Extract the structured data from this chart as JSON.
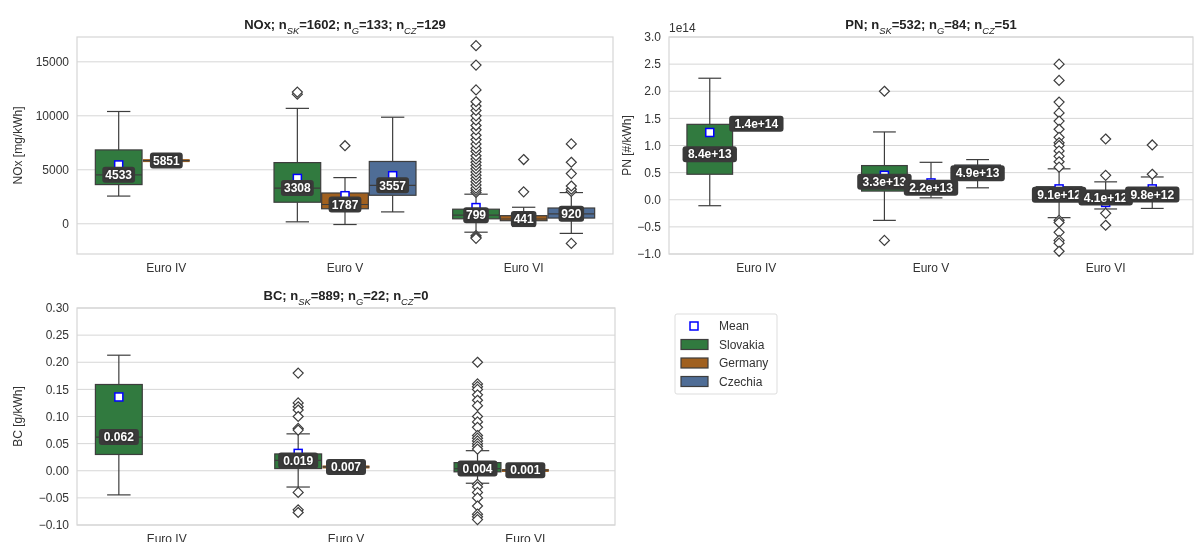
{
  "chart_data": [
    {
      "type": "box",
      "title": "NOx; n$_{SK}$=1602; n$_{G}$=133; n$_{CZ}$=129",
      "ylabel": "NOx [mg/kWh]",
      "categories": [
        "Euro IV",
        "Euro V",
        "Euro VI"
      ],
      "ylim": [
        -2800,
        17300
      ],
      "yticks": [
        0,
        5000,
        10000,
        15000
      ],
      "grid": "y",
      "marker": "square",
      "series": [
        {
          "color": "#317a3f",
          "value_labels": [
            "4533",
            "3308",
            "799"
          ],
          "boxes": [
            {
              "low": 2565,
              "q1": 3630,
              "median": 4533,
              "q3": 6840,
              "high": 10400,
              "mean": 5450
            },
            {
              "low": 180,
              "q1": 1995,
              "median": 3308,
              "q3": 5665,
              "high": 10690,
              "mean": 4200,
              "outliers": [
                12000,
                12200
              ]
            },
            {
              "low": -780,
              "q1": 460,
              "median": 799,
              "q3": 1350,
              "high": 2740,
              "mean": 1500,
              "outliers": [
                2900,
                3100,
                3300,
                3600,
                3900,
                4200,
                4500,
                4800,
                5100,
                5400,
                5700,
                6000,
                6300,
                6700,
                7000,
                7400,
                7800,
                8200,
                8700,
                9100,
                9600,
                10000,
                10500,
                10900,
                11300,
                12400,
                14700,
                16500,
                -1100,
                -1250,
                -1350
              ]
            }
          ]
        },
        {
          "color": "#a0601f",
          "value_labels": [
            "5851",
            "1787",
            "441"
          ],
          "boxes": [
            {
              "low": 5851,
              "q1": 5851,
              "median": 5851,
              "q3": 5851,
              "high": 5851,
              "mean": 5851
            },
            {
              "low": -70,
              "q1": 1390,
              "median": 1787,
              "q3": 2850,
              "high": 4275,
              "mean": 2600,
              "outliers": [
                7230
              ]
            },
            {
              "low": -250,
              "q1": 285,
              "median": 441,
              "q3": 750,
              "high": 1530,
              "mean": 600,
              "outliers": [
                2960,
                5950
              ]
            }
          ]
        },
        {
          "color": "#4f6d96",
          "value_labels": [
            null,
            "3557",
            "920"
          ],
          "boxes": [
            null,
            {
              "low": 1100,
              "q1": 2640,
              "median": 3557,
              "q3": 5770,
              "high": 9870,
              "mean": 4450
            },
            {
              "low": -890,
              "q1": 530,
              "median": 920,
              "q3": 1460,
              "high": 2890,
              "mean": 1100,
              "outliers": [
                3000,
                3200,
                3500,
                4650,
                5700,
                7400,
                -1820
              ]
            }
          ]
        }
      ]
    },
    {
      "type": "box",
      "title": "PN; n$_{SK}$=532; n$_{G}$=84; n$_{CZ}$=51",
      "ylabel": "PN [#/kWh]",
      "annotations": [
        "1e14"
      ],
      "categories": [
        "Euro IV",
        "Euro V",
        "Euro VI"
      ],
      "ylim": [
        -1,
        3
      ],
      "yticks": [
        {
          "value": -1,
          "label": "−1.0"
        },
        {
          "value": -0.5,
          "label": "−0.5"
        },
        {
          "value": 0,
          "label": "0.0"
        },
        {
          "value": 0.5,
          "label": "0.5"
        },
        {
          "value": 1,
          "label": "1.0"
        },
        {
          "value": 1.5,
          "label": "1.5"
        },
        {
          "value": 2,
          "label": "2.0"
        },
        {
          "value": 2.5,
          "label": "2.5"
        },
        {
          "value": 3,
          "label": "3.0"
        }
      ],
      "grid": "y",
      "marker": "square",
      "series": [
        {
          "color": "#317a3f",
          "value_labels": [
            "8.4e+13",
            "3.3e+13",
            "9.1e+12"
          ],
          "boxes": [
            {
              "low": -0.11,
              "q1": 0.47,
              "median": 0.84,
              "q3": 1.39,
              "high": 2.24,
              "mean": 1.24
            },
            {
              "low": -0.38,
              "q1": 0.16,
              "median": 0.33,
              "q3": 0.63,
              "high": 1.25,
              "mean": 0.45,
              "outliers": [
                2.0,
                -0.75
              ]
            },
            {
              "low": -0.33,
              "q1": 0.03,
              "median": 0.091,
              "q3": 0.24,
              "high": 0.57,
              "mean": 0.2,
              "outliers": [
                2.5,
                2.2,
                1.8,
                1.6,
                1.45,
                1.3,
                1.15,
                1.05,
                1.0,
                0.9,
                0.8,
                0.7,
                0.6,
                -0.38,
                -0.42,
                -0.6,
                -0.75,
                -0.8,
                -0.95
              ]
            }
          ]
        },
        {
          "color": "#a0601f",
          "value_labels": [
            "1.4e+14",
            "2.2e+13",
            "4.1e+12"
          ],
          "boxes": [
            {
              "low": 1.4,
              "q1": 1.4,
              "median": 1.4,
              "q3": 1.4,
              "high": 1.4,
              "mean": 1.4
            },
            {
              "low": 0.035,
              "q1": 0.11,
              "median": 0.22,
              "q3": 0.35,
              "high": 0.69,
              "mean": 0.31
            },
            {
              "low": -0.17,
              "q1": -0.03,
              "median": 0.041,
              "q3": 0.1,
              "high": 0.33,
              "mean": -0.05,
              "outliers": [
                1.12,
                0.45,
                -0.25,
                -0.47
              ]
            }
          ]
        },
        {
          "color": "#4f6d96",
          "value_labels": [
            null,
            "4.9e+13",
            "9.8e+12"
          ],
          "boxes": [
            null,
            {
              "low": 0.22,
              "q1": 0.4,
              "median": 0.49,
              "q3": 0.64,
              "high": 0.74,
              "mean": 0.49
            },
            {
              "low": -0.16,
              "q1": 0.08,
              "median": 0.098,
              "q3": 0.15,
              "high": 0.42,
              "mean": 0.2,
              "outliers": [
                1.01,
                0.47
              ]
            }
          ]
        }
      ]
    },
    {
      "type": "box",
      "title": "BC; n$_{SK}$=889; n$_{G}$=22; n$_{CZ}$=0",
      "ylabel": "BC [g/kWh]",
      "annotations": [
        "Mean"
      ],
      "legend": "right",
      "categories": [
        "Euro IV",
        "Euro V",
        "Euro VI"
      ],
      "ylim": [
        -0.1,
        0.3
      ],
      "yticks": [
        {
          "value": -0.1,
          "label": "−0.10"
        },
        {
          "value": -0.05,
          "label": "−0.05"
        },
        {
          "value": 0,
          "label": "0.00"
        },
        {
          "value": 0.05,
          "label": "0.05"
        },
        {
          "value": 0.1,
          "label": "0.10"
        },
        {
          "value": 0.15,
          "label": "0.15"
        },
        {
          "value": 0.2,
          "label": "0.20"
        },
        {
          "value": 0.25,
          "label": "0.25"
        },
        {
          "value": 0.3,
          "label": "0.30"
        }
      ],
      "grid": "y",
      "marker": "square",
      "series": [
        {
          "name": "Slovakia",
          "color": "#317a3f",
          "value_labels": [
            "0.062",
            "0.019",
            "0.004"
          ],
          "boxes": [
            {
              "low": -0.0445,
              "q1": 0.03,
              "median": 0.062,
              "q3": 0.159,
              "high": 0.213,
              "mean": 0.136
            },
            {
              "low": -0.03,
              "q1": 0.004,
              "median": 0.019,
              "q3": 0.031,
              "high": 0.068,
              "mean": 0.032,
              "outliers": [
                0.18,
                0.125,
                0.118,
                0.112,
                0.1,
                0.078,
                0.075,
                -0.04,
                -0.072,
                -0.077
              ]
            },
            {
              "low": -0.023,
              "q1": -0.002,
              "median": 0.004,
              "q3": 0.015,
              "high": 0.037,
              "mean": 0.006,
              "outliers": [
                0.2,
                0.16,
                0.155,
                0.15,
                0.14,
                0.13,
                0.12,
                0.1,
                0.09,
                0.08,
                0.065,
                0.06,
                0.055,
                0.05,
                0.045,
                0.04,
                -0.025,
                -0.03,
                -0.04,
                -0.05,
                -0.065,
                -0.08,
                -0.085,
                -0.09
              ]
            }
          ]
        },
        {
          "name": "Germany",
          "color": "#a0601f",
          "value_labels": [
            null,
            "0.007",
            "0.001"
          ],
          "boxes": [
            null,
            {
              "low": 0.007,
              "q1": 0.007,
              "median": 0.007,
              "q3": 0.007,
              "high": 0.007,
              "mean": 0.007
            },
            {
              "low": -0.002,
              "q1": -0.001,
              "median": 0.001,
              "q3": 0.002,
              "high": 0.003,
              "mean": -0.001
            }
          ]
        },
        {
          "name": "Czechia",
          "color": "#4f6d96",
          "value_labels": [
            null,
            null,
            null
          ],
          "boxes": [
            null,
            null,
            null
          ]
        }
      ]
    }
  ]
}
